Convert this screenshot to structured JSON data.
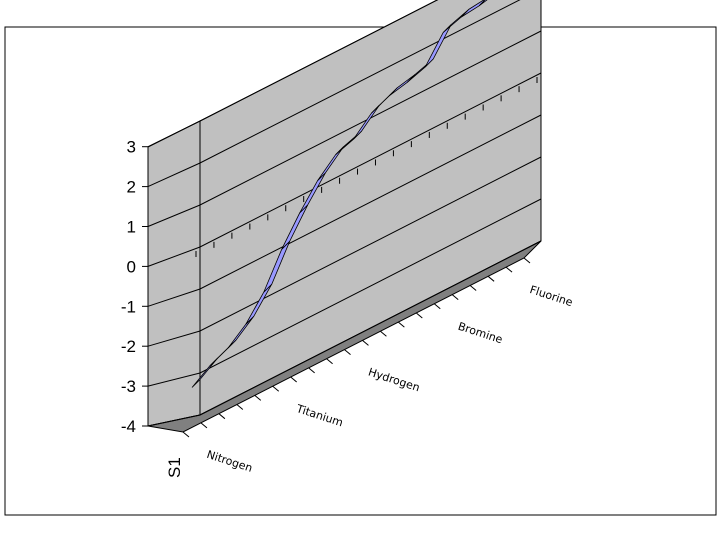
{
  "chart_data": {
    "type": "line",
    "style": "3d-ribbon",
    "title": "",
    "xlabel": "",
    "ylabel": "",
    "series_axis_label": "S1",
    "ylim": [
      -4,
      3
    ],
    "yticks": [
      "3",
      "2",
      "1",
      "0",
      "-1",
      "-2",
      "-3",
      "-4"
    ],
    "grid": true,
    "legend": "none",
    "categories_labeled": [
      "Nitrogen",
      "Titanium",
      "Hydrogen",
      "Bromine",
      "Fluorine"
    ],
    "series": [
      {
        "name": "S1",
        "color": "#9999ff",
        "values": [
          -3.05,
          -2.75,
          -2.55,
          -2.2,
          -1.65,
          -0.85,
          -0.2,
          0.35,
          0.75,
          0.9,
          1.3,
          1.5,
          1.6,
          1.75,
          2.35,
          2.5,
          2.55,
          2.65,
          3.7
        ]
      }
    ]
  }
}
